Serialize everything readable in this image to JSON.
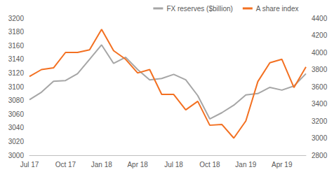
{
  "chart_data": {
    "type": "line",
    "categories": [
      "Jul 17",
      null,
      null,
      "Oct 17",
      null,
      null,
      "Jan 18",
      null,
      null,
      "Apr 18",
      null,
      null,
      "Jul 18",
      null,
      null,
      "Oct 18",
      null,
      null,
      "Jan 19",
      null,
      null,
      "Apr 19",
      null,
      null
    ],
    "series": [
      {
        "name": "FX reserves ($billion)",
        "color": "#a6a6a6",
        "values": [
          3081,
          3092,
          3108,
          3109,
          3119,
          3140,
          3161,
          3134,
          3143,
          3125,
          3110,
          3112,
          3118,
          3110,
          3087,
          3053,
          3062,
          3073,
          3088,
          3090,
          3099,
          3095,
          3101,
          3119
        ]
      },
      {
        "name": "A share index",
        "color": "#f37021",
        "axis": "y2",
        "values": [
          3720,
          3800,
          3820,
          4000,
          4000,
          4030,
          4270,
          4020,
          3920,
          3760,
          3800,
          3510,
          3510,
          3330,
          3430,
          3150,
          3160,
          3000,
          3200,
          3660,
          3880,
          3920,
          3590,
          3830
        ]
      }
    ],
    "ylim": [
      3000,
      3200
    ],
    "yticks": [
      3000,
      3020,
      3040,
      3060,
      3080,
      3100,
      3120,
      3140,
      3160,
      3180,
      3200
    ],
    "y2lim": [
      2800,
      4400
    ],
    "y2ticks": [
      2800,
      3000,
      3200,
      3400,
      3600,
      3800,
      4000,
      4200,
      4400
    ],
    "grid": false,
    "legend": "top"
  }
}
